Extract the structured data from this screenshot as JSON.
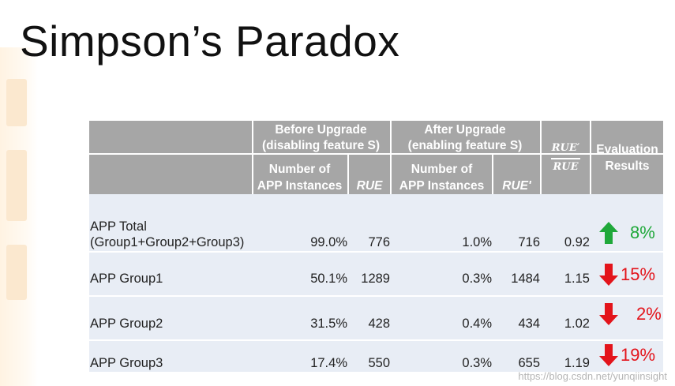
{
  "title": "Simpson’s Paradox",
  "colors": {
    "up": "#1fa83a",
    "down": "#e3141b",
    "header_bg": "#a6a6a6",
    "body_bg": "#e8edf5"
  },
  "headers": {
    "before_line1": "Before Upgrade",
    "before_line2": "(disabling feature S)",
    "after_line1": "After Upgrade",
    "after_line2": "(enabling feature S)",
    "num_line1": "Number of",
    "num_line2": "APP Instances",
    "rue": "RUE",
    "rue_prime": "RUE'",
    "ratio_num": "RUE′",
    "ratio_den": "RUE",
    "eval_line1": "Evaluation",
    "eval_line2": "Results"
  },
  "rows": [
    {
      "label_line1": "APP Total",
      "label_line2": "(Group1+Group2+Group3)",
      "before_pct": "99.0%",
      "before_rue": "776",
      "after_pct": "1.0%",
      "after_rue": "716",
      "ratio": "0.92",
      "direction": "up-arrow-icon",
      "result": "8%"
    },
    {
      "label_line1": "APP Group1",
      "label_line2": "",
      "before_pct": "50.1%",
      "before_rue": "1289",
      "after_pct": "0.3%",
      "after_rue": "1484",
      "ratio": "1.15",
      "direction": "down-arrow-icon",
      "result": "15%"
    },
    {
      "label_line1": "APP Group2",
      "label_line2": "",
      "before_pct": "31.5%",
      "before_rue": "428",
      "after_pct": "0.4%",
      "after_rue": "434",
      "ratio": "1.02",
      "direction": "down-arrow-icon",
      "result": "2%"
    },
    {
      "label_line1": "APP Group3",
      "label_line2": "",
      "before_pct": "17.4%",
      "before_rue": "550",
      "after_pct": "0.3%",
      "after_rue": "655",
      "ratio": "1.19",
      "direction": "down-arrow-icon",
      "result": "19%"
    }
  ],
  "watermark": "https://blog.csdn.net/yunqiinsight"
}
